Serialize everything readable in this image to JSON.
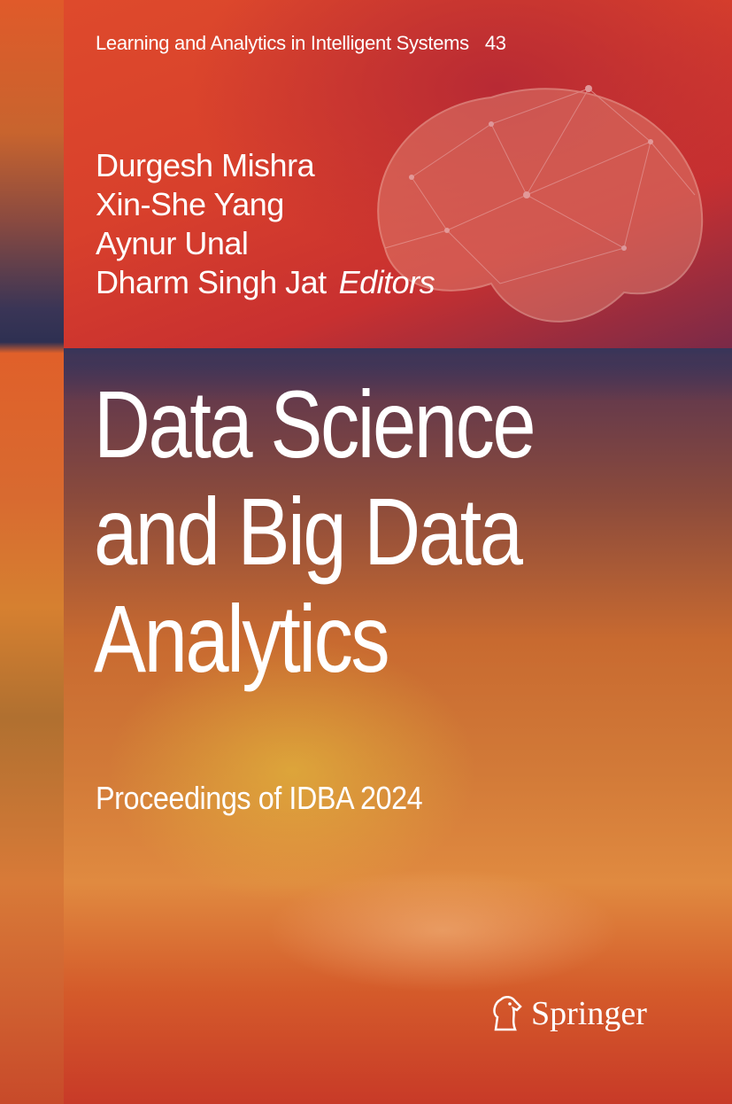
{
  "series": {
    "name": "Learning and Analytics in Intelligent Systems",
    "volume": "43"
  },
  "editors": [
    "Durgesh Mishra",
    "Xin-She Yang",
    "Aynur Unal",
    "Dharm Singh Jat"
  ],
  "editors_label": "Editors",
  "title_lines": [
    "Data Science",
    "and Big Data",
    "Analytics"
  ],
  "subtitle": "Proceedings of IDBA 2024",
  "publisher": {
    "name": "Springer",
    "logo_icon": "springer-horse-icon"
  },
  "colors": {
    "band": "#35355a",
    "red": "#d8402c",
    "text": "#ffffff"
  }
}
